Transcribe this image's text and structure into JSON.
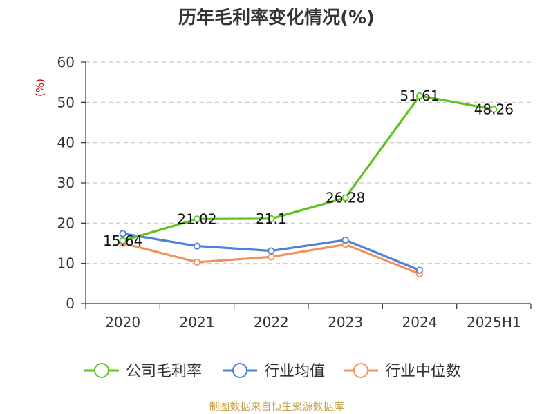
{
  "chart_data": {
    "type": "line",
    "title": "历年毛利率变化情况(%)",
    "ylabel": "(%)",
    "categories": [
      "2020",
      "2021",
      "2022",
      "2023",
      "2024",
      "2025H1"
    ],
    "ylim": [
      0,
      60
    ],
    "yticks": [
      0,
      10,
      20,
      30,
      40,
      50,
      60
    ],
    "grid": true,
    "legend_position": "bottom",
    "series": [
      {
        "name": "公司毛利率",
        "color": "#5ec31f",
        "values": [
          15.64,
          21.02,
          21.1,
          26.28,
          51.61,
          48.26
        ],
        "labels": [
          "15.64",
          "21.02",
          "21.1",
          "26.28",
          "51.61",
          "48.26"
        ]
      },
      {
        "name": "行业均值",
        "color": "#4d7fdb",
        "values": [
          17.4,
          14.3,
          13.1,
          15.8,
          8.3,
          null
        ]
      },
      {
        "name": "行业中位数",
        "color": "#f5905a",
        "values": [
          15.0,
          10.3,
          11.6,
          14.7,
          7.4,
          null
        ]
      }
    ]
  },
  "source": "制图数据来自恒生聚源数据库"
}
